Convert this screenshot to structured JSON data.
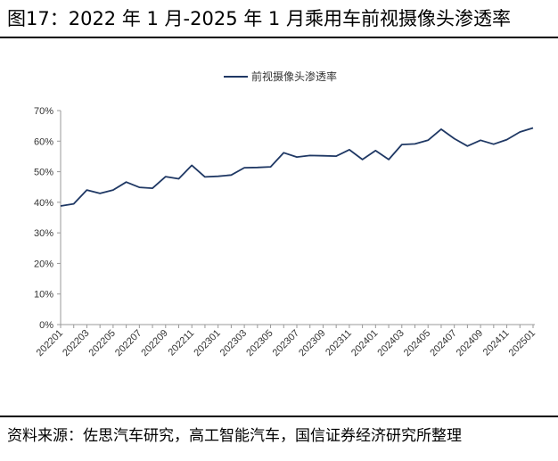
{
  "figure": {
    "title": "图17：2022 年 1 月-2025 年 1 月乘用车前视摄像头渗透率",
    "source": "资料来源：佐思汽车研究，高工智能汽车，国信证券经济研究所整理"
  },
  "chart_data": {
    "type": "line",
    "x": [
      "202201",
      "202202",
      "202203",
      "202204",
      "202205",
      "202206",
      "202207",
      "202208",
      "202209",
      "202210",
      "202211",
      "202212",
      "202301",
      "202302",
      "202303",
      "202304",
      "202305",
      "202306",
      "202307",
      "202308",
      "202309",
      "202310",
      "202311",
      "202312",
      "202401",
      "202402",
      "202403",
      "202404",
      "202405",
      "202406",
      "202407",
      "202408",
      "202409",
      "202410",
      "202411",
      "202412",
      "202501"
    ],
    "x_tick_labels": [
      "202201",
      "202203",
      "202205",
      "202207",
      "202209",
      "202211",
      "202301",
      "202303",
      "202305",
      "202307",
      "202309",
      "202311",
      "202401",
      "202403",
      "202405",
      "202407",
      "202409",
      "202411",
      "202501"
    ],
    "series": [
      {
        "name": "前视摄像头渗透率",
        "color": "#1f3864",
        "values": [
          38.8,
          39.5,
          44.0,
          42.9,
          44.0,
          46.6,
          44.9,
          44.6,
          48.4,
          47.7,
          52.1,
          48.3,
          48.5,
          48.9,
          51.3,
          51.4,
          51.6,
          56.2,
          54.8,
          55.3,
          55.2,
          55.1,
          57.2,
          54.0,
          56.9,
          54.0,
          58.9,
          59.1,
          60.3,
          63.9,
          60.8,
          58.4,
          60.3,
          59.0,
          60.5,
          63.0,
          64.3
        ]
      }
    ],
    "y_ticks": [
      "0%",
      "10%",
      "20%",
      "30%",
      "40%",
      "50%",
      "60%",
      "70%"
    ],
    "ylim": [
      0,
      70
    ],
    "legend_position": "top-center",
    "grid": false
  }
}
